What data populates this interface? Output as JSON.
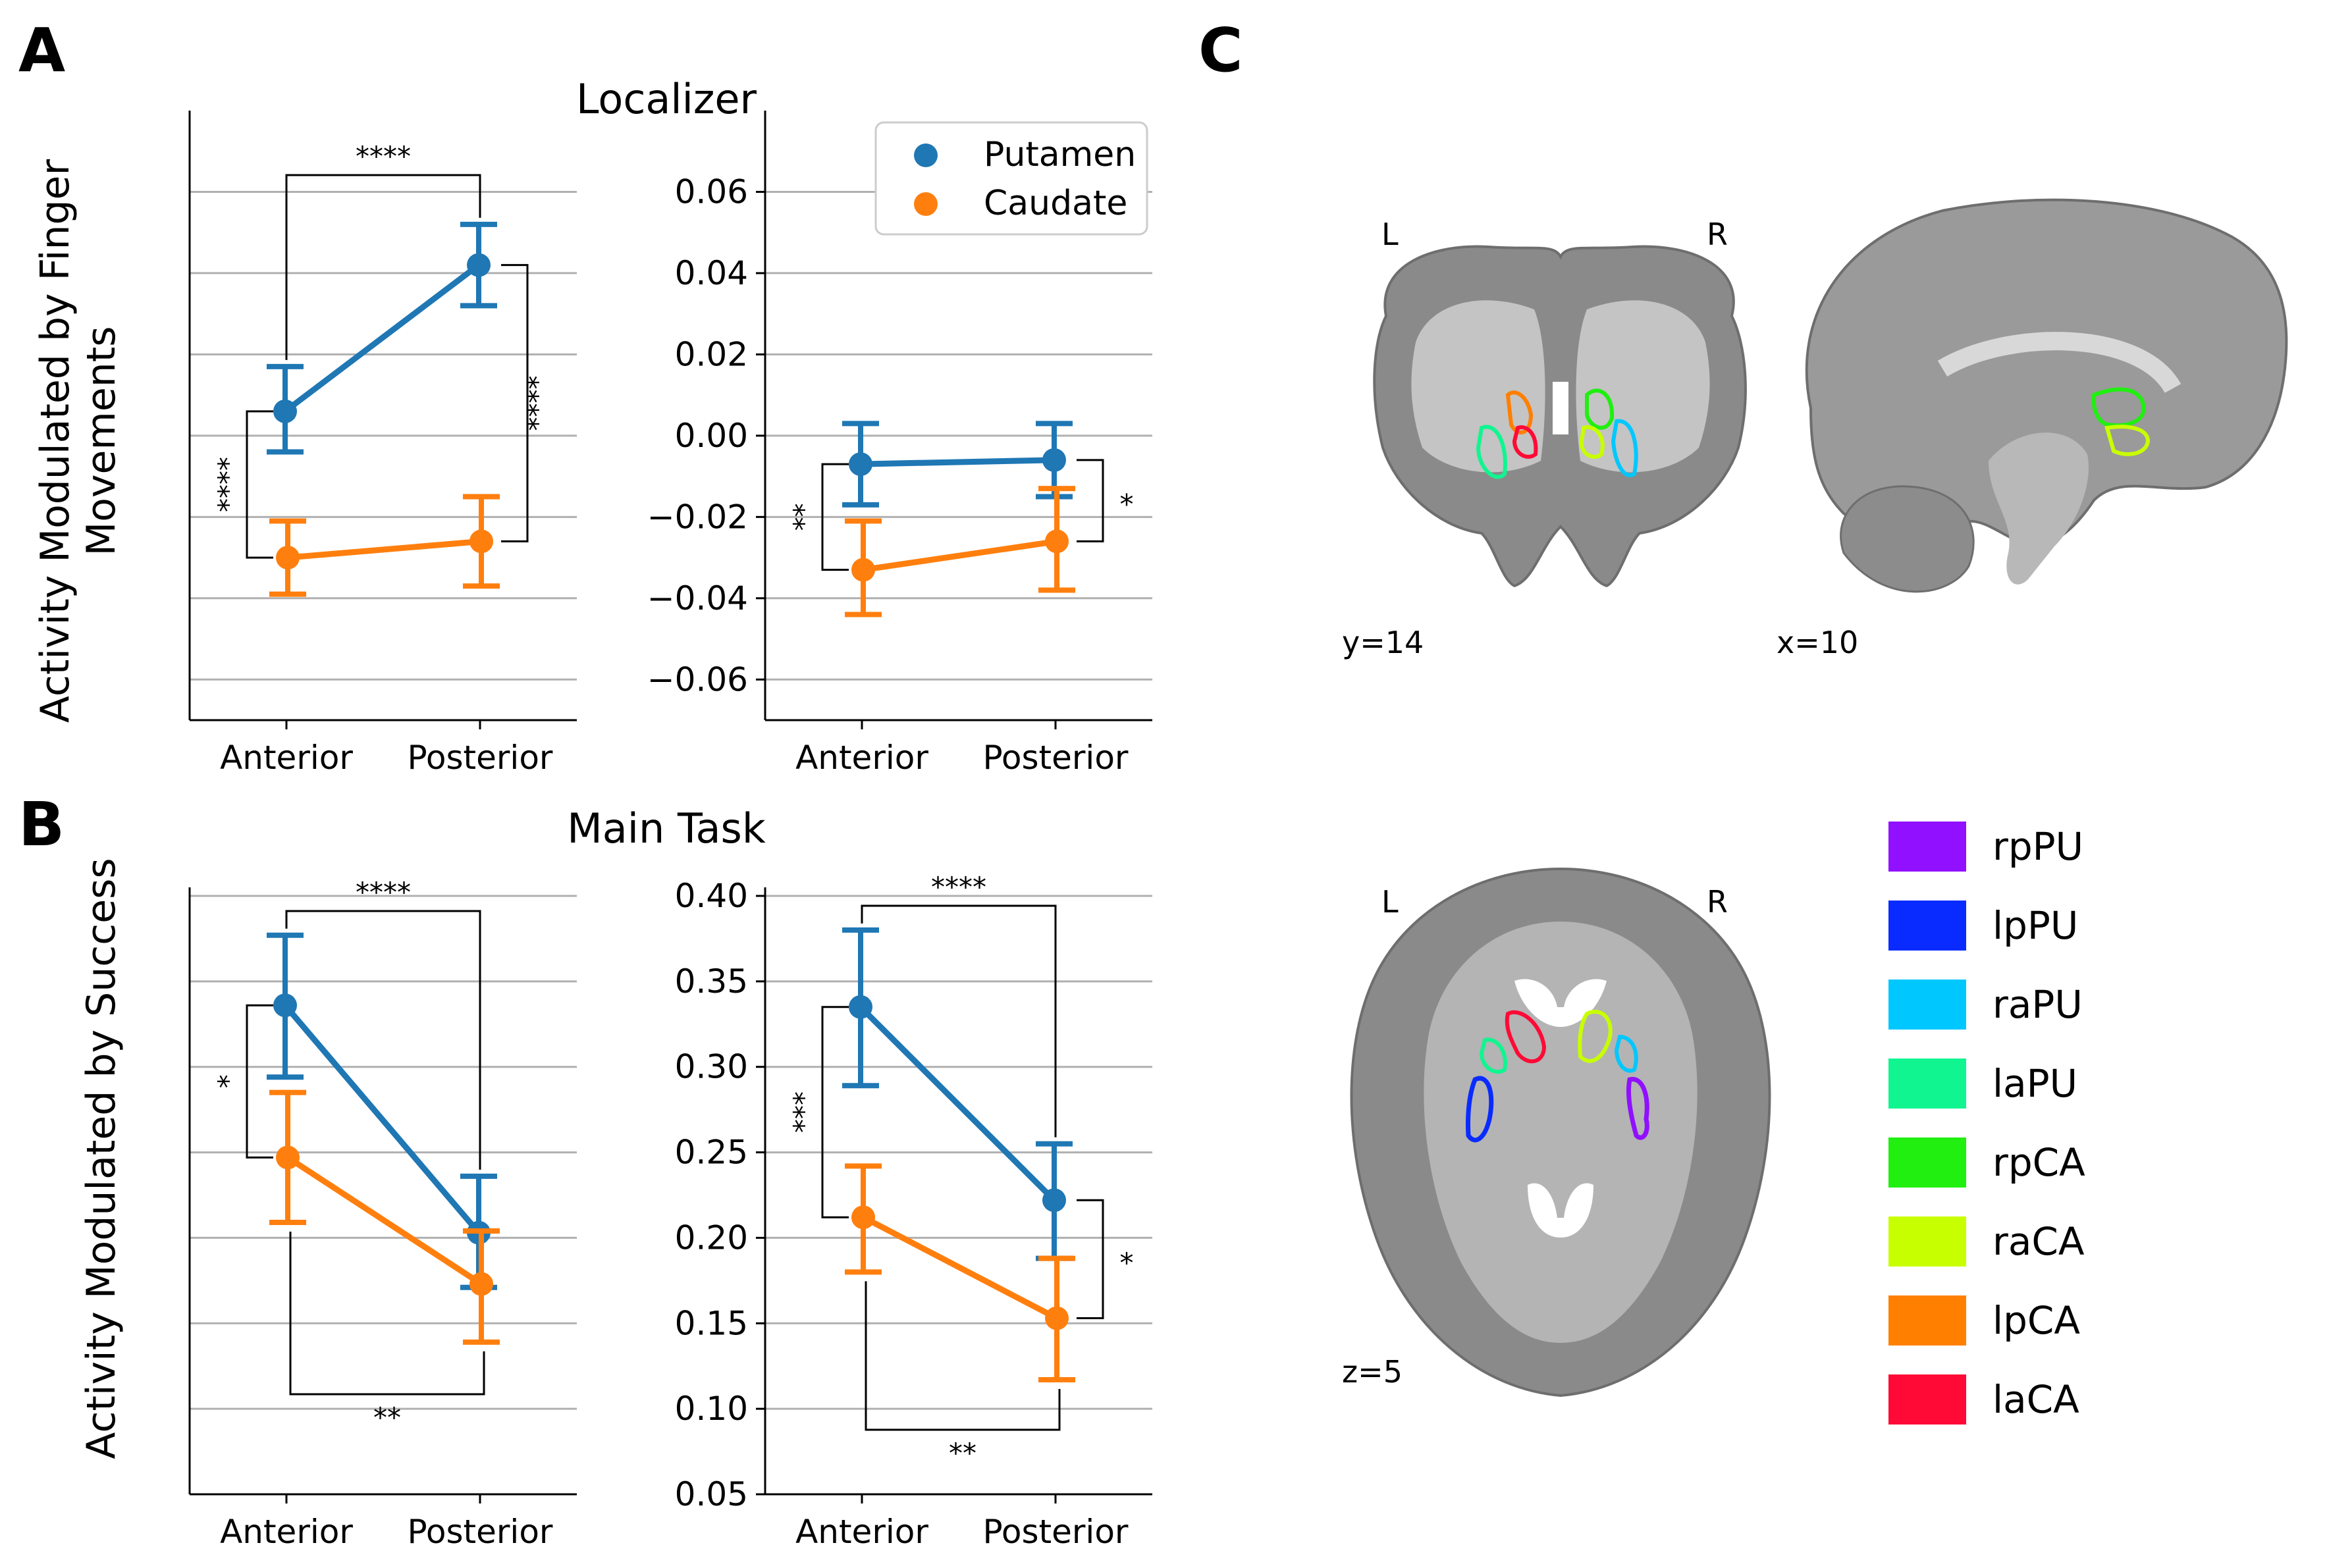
{
  "panel_letters": {
    "a": "A",
    "b": "B",
    "c": "C"
  },
  "colors": {
    "putamen": "#1f77b4",
    "caudate": "#ff7f0e",
    "grid": "#b0b0b0"
  },
  "legend": {
    "putamen": "Putamen",
    "caudate": "Caudate"
  },
  "chart_data": [
    {
      "id": "localizer",
      "type": "line",
      "title": "Localizer",
      "ylabel_line1": "Activity Modulated by Finger",
      "ylabel_line2": "Movements",
      "ylim": [
        -0.07,
        0.08
      ],
      "yticks": [
        -0.06,
        -0.04,
        -0.02,
        0.0,
        0.02,
        0.04,
        0.06
      ],
      "ytick_labels": [
        "−0.06",
        "−0.04",
        "−0.02",
        "0.00",
        "0.02",
        "0.04",
        "0.06"
      ],
      "categories": [
        "Anterior",
        "Posterior"
      ],
      "grid": true,
      "legend_position": "top-right",
      "subplots": [
        {
          "series": [
            {
              "name": "Putamen",
              "values": [
                0.006,
                0.042
              ],
              "err_low": [
                -0.004,
                0.032
              ],
              "err_high": [
                0.017,
                0.052
              ]
            },
            {
              "name": "Caudate",
              "values": [
                -0.03,
                -0.026
              ],
              "err_low": [
                -0.039,
                -0.037
              ],
              "err_high": [
                -0.021,
                -0.015
              ]
            }
          ],
          "significance": [
            {
              "label": "****",
              "compare": "putamen anterior vs posterior"
            },
            {
              "label": "****",
              "compare": "anterior putamen vs caudate"
            },
            {
              "label": "****",
              "compare": "posterior putamen vs caudate"
            }
          ]
        },
        {
          "series": [
            {
              "name": "Putamen",
              "values": [
                -0.007,
                -0.006
              ],
              "err_low": [
                -0.017,
                -0.015
              ],
              "err_high": [
                0.003,
                0.003
              ]
            },
            {
              "name": "Caudate",
              "values": [
                -0.033,
                -0.026
              ],
              "err_low": [
                -0.044,
                -0.038
              ],
              "err_high": [
                -0.021,
                -0.013
              ]
            }
          ],
          "significance": [
            {
              "label": "**",
              "compare": "anterior putamen vs caudate"
            },
            {
              "label": "*",
              "compare": "posterior putamen vs caudate"
            }
          ]
        }
      ]
    },
    {
      "id": "main_task",
      "type": "line",
      "title": "Main Task",
      "ylabel_line1": "Activity Modulated by Success",
      "ylim": [
        0.05,
        0.405
      ],
      "yticks": [
        0.05,
        0.1,
        0.15,
        0.2,
        0.25,
        0.3,
        0.35,
        0.4
      ],
      "ytick_labels": [
        "0.05",
        "0.10",
        "0.15",
        "0.20",
        "0.25",
        "0.30",
        "0.35",
        "0.40"
      ],
      "categories": [
        "Anterior",
        "Posterior"
      ],
      "grid": true,
      "subplots": [
        {
          "series": [
            {
              "name": "Putamen",
              "values": [
                0.336,
                0.203
              ],
              "err_low": [
                0.294,
                0.171
              ],
              "err_high": [
                0.377,
                0.236
              ]
            },
            {
              "name": "Caudate",
              "values": [
                0.247,
                0.173
              ],
              "err_low": [
                0.209,
                0.139
              ],
              "err_high": [
                0.285,
                0.204
              ]
            }
          ],
          "significance": [
            {
              "label": "****",
              "compare": "putamen anterior vs posterior"
            },
            {
              "label": "*",
              "compare": "anterior putamen vs caudate"
            },
            {
              "label": "**",
              "compare": "caudate anterior vs posterior"
            }
          ]
        },
        {
          "series": [
            {
              "name": "Putamen",
              "values": [
                0.335,
                0.222
              ],
              "err_low": [
                0.289,
                0.188
              ],
              "err_high": [
                0.38,
                0.255
              ]
            },
            {
              "name": "Caudate",
              "values": [
                0.212,
                0.153
              ],
              "err_low": [
                0.18,
                0.117
              ],
              "err_high": [
                0.242,
                0.188
              ]
            }
          ],
          "significance": [
            {
              "label": "****",
              "compare": "putamen anterior vs posterior"
            },
            {
              "label": "***",
              "compare": "anterior putamen vs caudate"
            },
            {
              "label": "*",
              "compare": "posterior putamen vs caudate"
            },
            {
              "label": "**",
              "compare": "caudate anterior vs posterior"
            }
          ]
        }
      ]
    }
  ],
  "brain": {
    "coronal": {
      "left": "L",
      "right": "R",
      "coord": "y=14"
    },
    "sagittal": {
      "coord": "x=10"
    },
    "axial": {
      "left": "L",
      "right": "R",
      "coord": "z=5"
    }
  },
  "roi_legend": [
    {
      "label": "rpPU",
      "color": "#9010ff"
    },
    {
      "label": "lpPU",
      "color": "#0a2bff"
    },
    {
      "label": "raPU",
      "color": "#00c8ff"
    },
    {
      "label": "laPU",
      "color": "#10f590"
    },
    {
      "label": "rpCA",
      "color": "#20ef10"
    },
    {
      "label": "raCA",
      "color": "#c8ff00"
    },
    {
      "label": "lpCA",
      "color": "#ff7f00"
    },
    {
      "label": "laCA",
      "color": "#ff0a36"
    }
  ]
}
